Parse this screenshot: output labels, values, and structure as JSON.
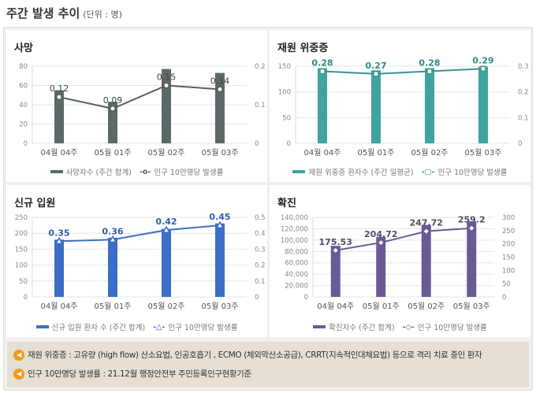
{
  "header": {
    "title": "주간 발생 추이",
    "unit": "(단위 : 명)"
  },
  "chart_data": [
    {
      "type": "bar+line",
      "title": "사망",
      "categories": [
        "04월 04주",
        "05월 01주",
        "05월 02주",
        "05월 03주"
      ],
      "series": [
        {
          "name": "사망자수 (주간 합계)",
          "type": "bar",
          "axis": "left",
          "values": [
            55,
            43,
            77,
            73
          ]
        },
        {
          "name": "인구 10만명당 발생률",
          "type": "line",
          "axis": "right",
          "marker": "circle",
          "values": [
            0.12,
            0.09,
            0.15,
            0.14
          ],
          "labels": [
            "0.12",
            "0.09",
            "0.15",
            "0.14"
          ]
        }
      ],
      "yleft": {
        "ticks": [
          "0",
          "20",
          "40",
          "60",
          "80"
        ],
        "range": [
          0,
          80
        ]
      },
      "yright": {
        "ticks": [
          "0",
          "0.1",
          "0.2"
        ],
        "range": [
          0,
          0.2
        ]
      },
      "colors": {
        "bar": "#5d6868",
        "line": "#555f5f",
        "label": "#444"
      }
    },
    {
      "type": "bar+line",
      "title": "재원 위중증",
      "categories": [
        "04월 04주",
        "05월 01주",
        "05월 02주",
        "05월 03주"
      ],
      "series": [
        {
          "name": "재원 위중증 환자수 (주간 일평균)",
          "type": "bar",
          "axis": "left",
          "values": [
            146,
            142,
            146,
            149
          ]
        },
        {
          "name": "인구 10만명당 발생률",
          "type": "line",
          "axis": "right",
          "marker": "square",
          "values": [
            0.28,
            0.27,
            0.28,
            0.29
          ],
          "labels": [
            "0.28",
            "0.27",
            "0.28",
            "0.29"
          ]
        }
      ],
      "yleft": {
        "ticks": [
          "0",
          "50",
          "100",
          "150"
        ],
        "range": [
          0,
          150
        ]
      },
      "yright": {
        "ticks": [
          "0",
          "0.1",
          "0.2",
          "0.3"
        ],
        "range": [
          0,
          0.3
        ]
      },
      "colors": {
        "bar": "#3fa39f",
        "line": "#3a9490",
        "label": "#2f8a86"
      }
    },
    {
      "type": "bar+line",
      "title": "신규 입원",
      "categories": [
        "04월 04주",
        "05월 01주",
        "05월 02주",
        "05월 03주"
      ],
      "series": [
        {
          "name": "신규 입원 환자 수 (주간 합계)",
          "type": "bar",
          "axis": "left",
          "values": [
            180,
            186,
            214,
            231
          ]
        },
        {
          "name": "인구 10만명당 발생률",
          "type": "line",
          "axis": "right",
          "marker": "triangle",
          "values": [
            0.35,
            0.36,
            0.42,
            0.45
          ],
          "labels": [
            "0.35",
            "0.36",
            "0.42",
            "0.45"
          ]
        }
      ],
      "yleft": {
        "ticks": [
          "0",
          "50",
          "100",
          "150",
          "200",
          "250"
        ],
        "range": [
          0,
          250
        ]
      },
      "yright": {
        "ticks": [
          "0",
          "0.1",
          "0.2",
          "0.3",
          "0.4",
          "0.5"
        ],
        "range": [
          0,
          0.5
        ]
      },
      "colors": {
        "bar": "#3d6ec6",
        "line": "#3d6ec6",
        "label": "#2f5ea8"
      }
    },
    {
      "type": "bar+line",
      "title": "확진",
      "categories": [
        "04월 04주",
        "05월 01주",
        "05월 02주",
        "05월 03주"
      ],
      "series": [
        {
          "name": "확진자수 (주간 합계)",
          "type": "bar",
          "axis": "left",
          "values": [
            90000,
            105800,
            126700,
            132900
          ]
        },
        {
          "name": "인구 10만명당 발생률",
          "type": "line",
          "axis": "right",
          "marker": "diamond",
          "values": [
            175.53,
            204.72,
            247.72,
            259.2
          ],
          "labels": [
            "175.53",
            "204.72",
            "247.72",
            "259.2"
          ]
        }
      ],
      "yleft": {
        "ticks": [
          "0",
          "20,000",
          "40,000",
          "60,000",
          "80,000",
          "100,000",
          "120,000",
          "140,000"
        ],
        "range": [
          0,
          140000
        ]
      },
      "yright": {
        "ticks": [
          "0",
          "50",
          "100",
          "150",
          "200",
          "250",
          "300"
        ],
        "range": [
          0,
          300
        ]
      },
      "colors": {
        "bar": "#6a5a94",
        "line": "#6a5a94",
        "label": "#4e4f6a"
      }
    }
  ],
  "notes": [
    "재원 위중증 : 고유량 (high flow) 산소요법, 인공호흡기 , ECMO (체외막산소공급), CRRT(지속적인대체요법) 등으로 격리 치료 중인 환자",
    "인구 10만명당 발생률 : 21.12월 행정안전부 주민등록인구현황기준"
  ],
  "note_icon": "speaker-icon"
}
